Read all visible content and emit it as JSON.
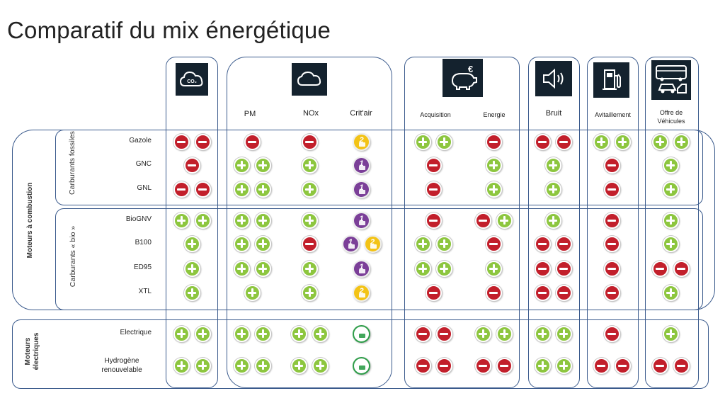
{
  "title": "Comparatif du mix énergétique",
  "columns": [
    {
      "id": "co2",
      "icon": "co2-cloud-icon",
      "labels": []
    },
    {
      "id": "pm",
      "icon": "pollution-cloud-icon",
      "labels": [
        "PM",
        "NOx",
        "Crit'air"
      ]
    },
    {
      "id": "cost",
      "icon": "piggy-bank-euro-icon",
      "labels": [
        "Acquisition",
        "Energie"
      ]
    },
    {
      "id": "noise",
      "icon": "speaker-icon",
      "labels": [
        "Bruit"
      ]
    },
    {
      "id": "fuel",
      "icon": "fuel-pump-icon",
      "labels": [
        "Avitaillement"
      ]
    },
    {
      "id": "offer",
      "icon": "vehicles-icon",
      "labels": [
        "Offre de Véhicules"
      ]
    }
  ],
  "groups": {
    "combustion": "Moteurs à combustion",
    "fossil": "Carburants fossiles",
    "bio": "Carburants « bio »",
    "electric": "Moteurs électriques"
  },
  "rows": [
    {
      "label": "Gazole",
      "co2": "--",
      "pm": "-",
      "nox": "-",
      "critair": "2",
      "acq": "++",
      "energie": "-",
      "bruit": "--",
      "avit": "++",
      "offre": "++"
    },
    {
      "label": "GNC",
      "co2": "-",
      "pm": "++",
      "nox": "+",
      "critair": "1",
      "acq": "-",
      "energie": "+",
      "bruit": "+",
      "avit": "-",
      "offre": "+"
    },
    {
      "label": "GNL",
      "co2": "--",
      "pm": "++",
      "nox": "+",
      "critair": "1",
      "acq": "-",
      "energie": "+",
      "bruit": "+",
      "avit": "-",
      "offre": "+"
    },
    {
      "label": "BioGNV",
      "co2": "++",
      "pm": "++",
      "nox": "+",
      "critair": "1",
      "acq": "-",
      "energie": "-+",
      "bruit": "+",
      "avit": "-",
      "offre": "+"
    },
    {
      "label": "B100",
      "co2": "+",
      "pm": "++",
      "nox": "-",
      "critair": "12",
      "acq": "++",
      "energie": "-",
      "bruit": "--",
      "avit": "-",
      "offre": "+"
    },
    {
      "label": "ED95",
      "co2": "+",
      "pm": "++",
      "nox": "+",
      "critair": "1",
      "acq": "++",
      "energie": "+",
      "bruit": "--",
      "avit": "-",
      "offre": "--"
    },
    {
      "label": "XTL",
      "co2": "+",
      "pm": "+",
      "nox": "+",
      "critair": "2",
      "acq": "-",
      "energie": "-",
      "bruit": "--",
      "avit": "-",
      "offre": "+"
    },
    {
      "label": "Electrique",
      "co2": "++",
      "pm": "++",
      "nox": "++",
      "critair": "0",
      "acq": "--",
      "energie": "++",
      "bruit": "++",
      "avit": "-",
      "offre": "+"
    },
    {
      "label": "Hydrogène renouvelable",
      "co2": "++",
      "pm": "++",
      "nox": "++",
      "critair": "0",
      "acq": "--",
      "energie": "--",
      "bruit": "++",
      "avit": "--",
      "offre": "--"
    }
  ],
  "colors": {
    "plus": "#8dc63f",
    "minus": "#c21f2b",
    "border": "#3a5a8c",
    "icon_bg": "#14222e",
    "critair_1": "#7b3f98",
    "critair_2": "#f3c316",
    "critair_0": "#2e9d49"
  }
}
